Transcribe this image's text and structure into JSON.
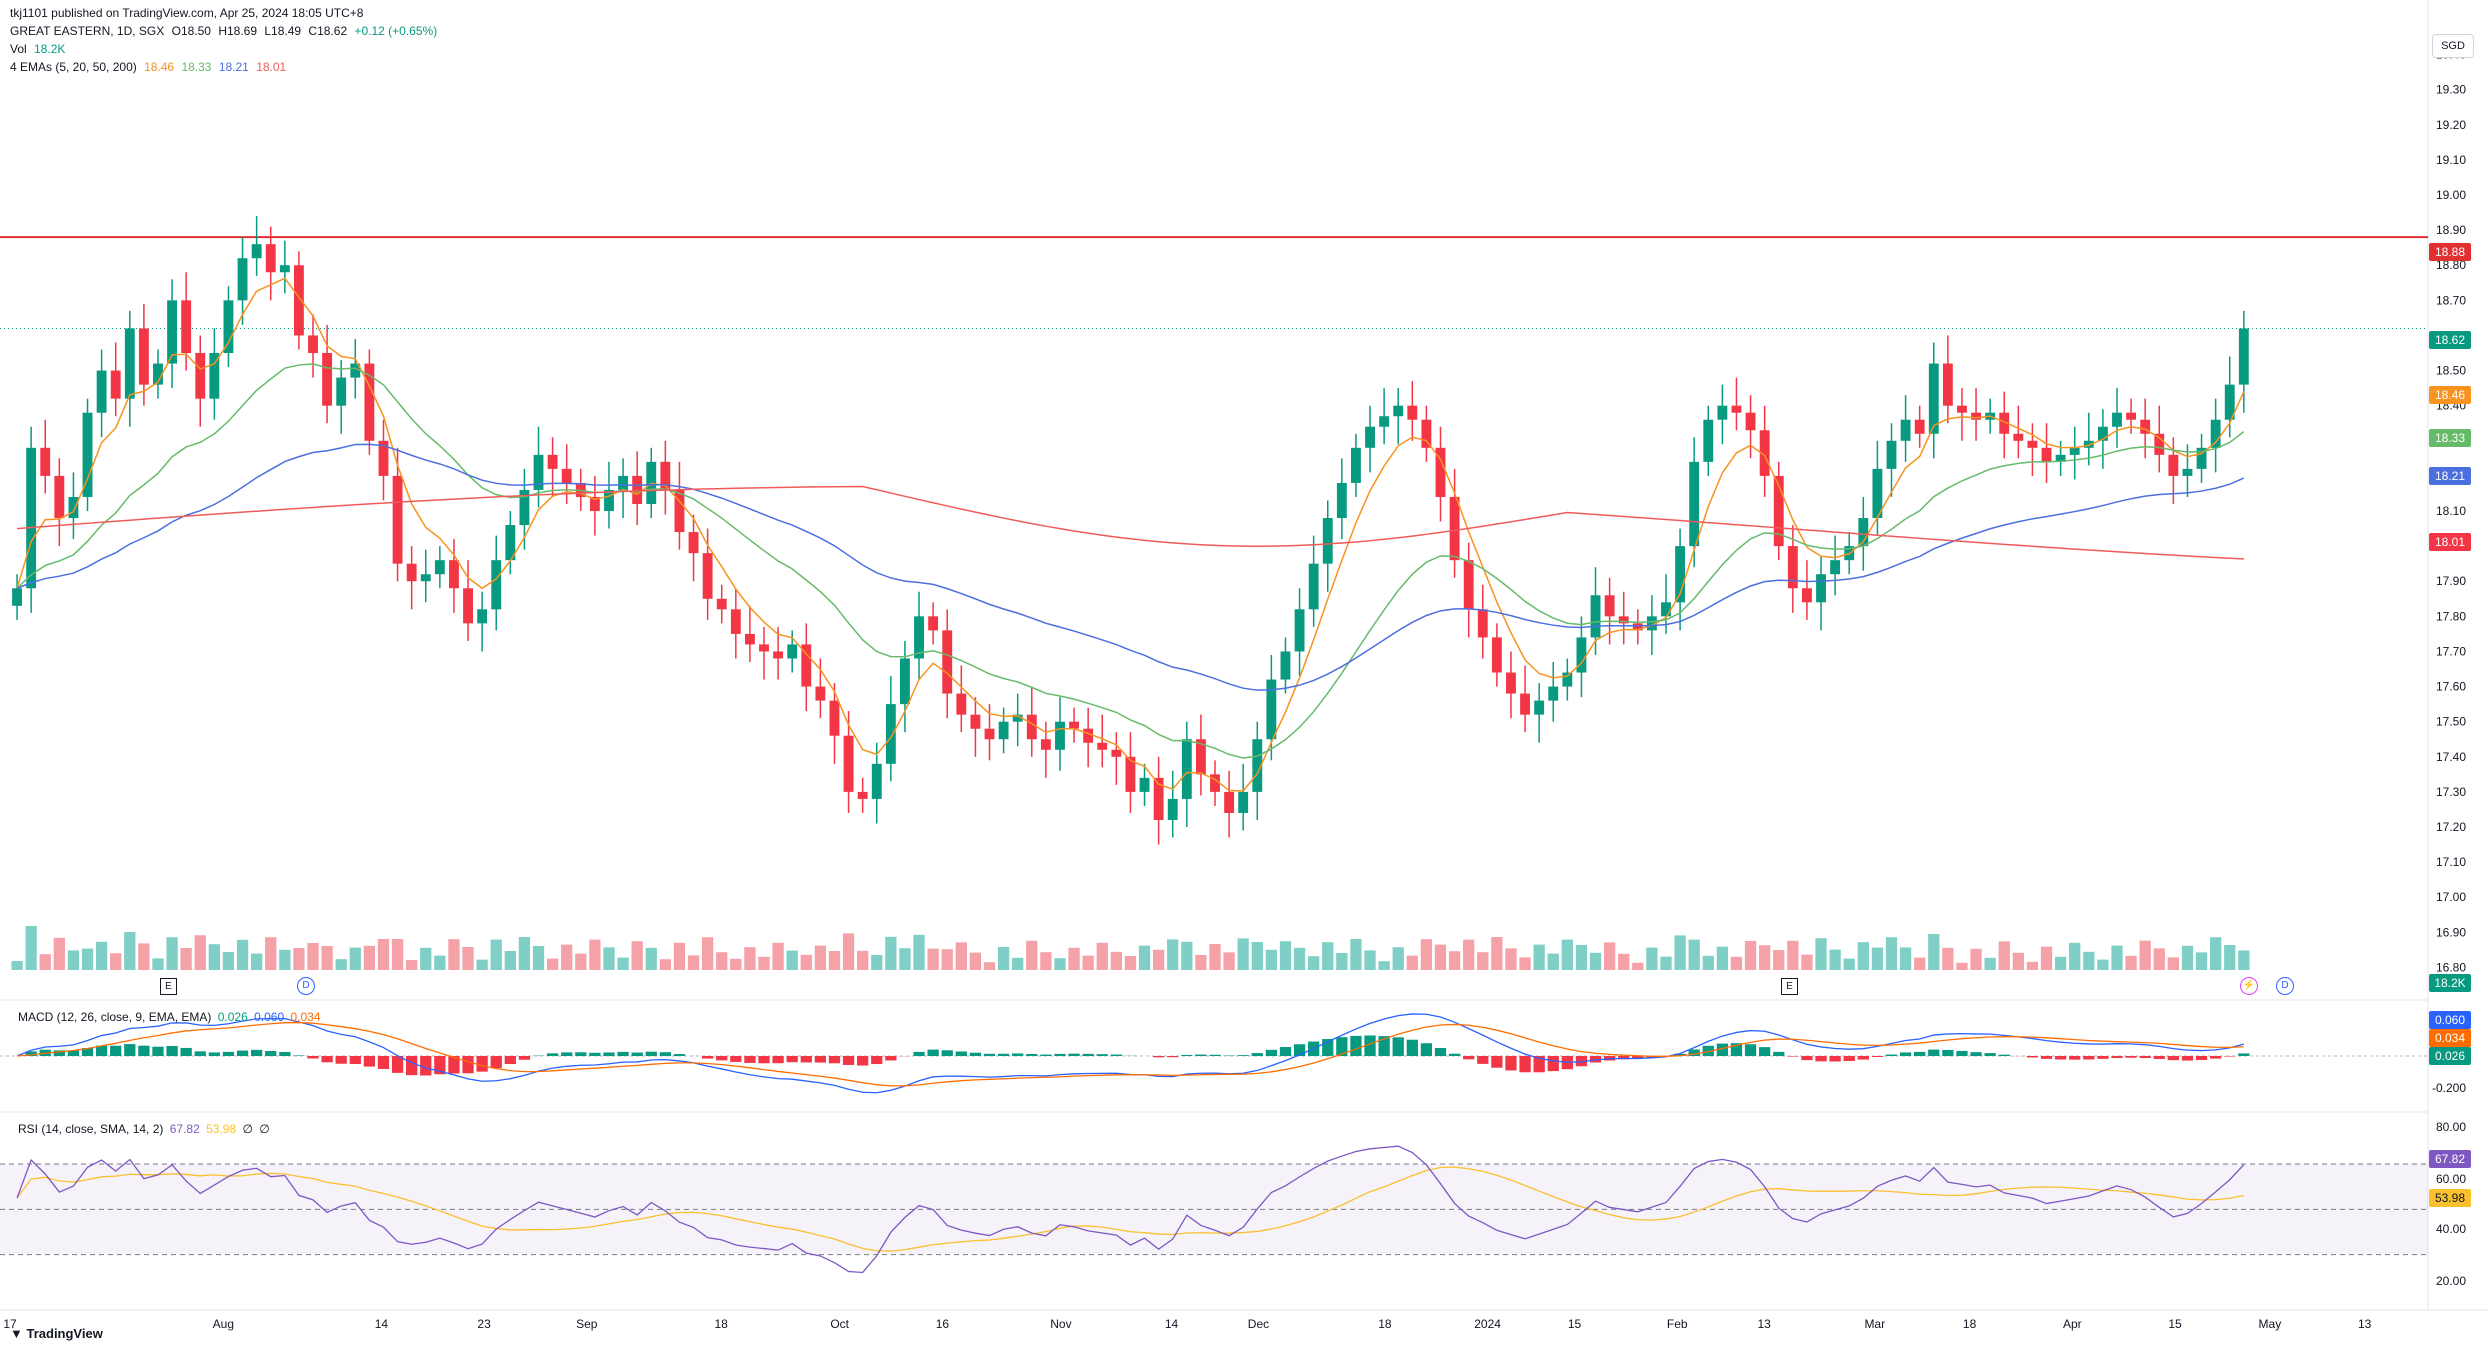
{
  "header": {
    "publisher": "tkj1101 published on TradingView.com, Apr 25, 2024 18:05 UTC+8",
    "symbol": "GREAT EASTERN, 1D, SGX",
    "open": "O18.50",
    "high": "H18.69",
    "low": "L18.49",
    "close": "C18.62",
    "change": "+0.12 (+0.65%)",
    "vol_label": "Vol",
    "vol_value": "18.2K",
    "ema_label": "4 EMAs (5, 20, 50, 200)",
    "ema_values": [
      "18.46",
      "18.33",
      "18.21",
      "18.01"
    ]
  },
  "currency": "SGD",
  "logo_text": "TradingView",
  "colors": {
    "up": "#089981",
    "down": "#f23645",
    "up_vol": "#7fcfc6",
    "down_vol": "#f5a1a8",
    "ema5": "#f7931e",
    "ema20": "#66bb6a",
    "ema50": "#4c6fe0",
    "ema200": "#f25a5a",
    "resistance": "#e03030",
    "macd": "#2962ff",
    "signal": "#ff6d00",
    "rsi": "#7e57c2",
    "rsi_ma": "#fbc02d"
  },
  "price_labels": {
    "resistance": "18.88",
    "last": "18.62",
    "ema5": "18.46",
    "ema20": "18.33",
    "ema50": "18.21",
    "ema200": "18.01",
    "volume": "18.2K"
  },
  "macd_label": {
    "title": "MACD (12, 26, close, 9, EMA, EMA)",
    "values": [
      "0.026",
      "0.060",
      "0.034"
    ]
  },
  "macd_tags": [
    "0.060",
    "0.034",
    "0.026"
  ],
  "macd_axis": [
    "-0.200"
  ],
  "rsi_label": {
    "title": "RSI (14, close, SMA, 14, 2)",
    "values": [
      "67.82",
      "53.98",
      "∅",
      "∅"
    ]
  },
  "rsi_tags": [
    "67.82",
    "53.98"
  ],
  "rsi_axis": [
    "80.00",
    "60.00",
    "40.00",
    "20.00"
  ],
  "markers": {
    "earnings": "E",
    "dividend": "D",
    "split": "⚡"
  },
  "chart_data": {
    "type": "candlestick",
    "title": "GREAT EASTERN, 1D, SGX",
    "currency": "SGD",
    "price_ticks": [
      "19.40",
      "19.30",
      "19.20",
      "19.10",
      "19.00",
      "18.90",
      "18.80",
      "18.70",
      "18.60",
      "18.50",
      "18.40",
      "18.30",
      "18.20",
      "18.10",
      "18.00",
      "17.90",
      "17.80",
      "17.70",
      "17.60",
      "17.50",
      "17.40",
      "17.30",
      "17.20",
      "17.10",
      "17.00",
      "16.90",
      "16.80"
    ],
    "ylim": [
      16.75,
      19.47
    ],
    "x_ticks": [
      "17",
      "Aug",
      "14",
      "23",
      "Sep",
      "18",
      "Oct",
      "16",
      "Nov",
      "14",
      "Dec",
      "18",
      "2024",
      "15",
      "Feb",
      "13",
      "Mar",
      "18",
      "Apr",
      "15",
      "May",
      "13"
    ],
    "resistance_level": 18.88,
    "close": [
      17.88,
      18.28,
      18.2,
      18.08,
      18.14,
      18.38,
      18.5,
      18.42,
      18.62,
      18.46,
      18.52,
      18.7,
      18.55,
      18.42,
      18.55,
      18.7,
      18.82,
      18.86,
      18.78,
      18.8,
      18.6,
      18.55,
      18.4,
      18.48,
      18.52,
      18.3,
      18.2,
      17.95,
      17.9,
      17.92,
      17.96,
      17.88,
      17.78,
      17.82,
      17.96,
      18.06,
      18.16,
      18.26,
      18.22,
      18.18,
      18.14,
      18.1,
      18.16,
      18.2,
      18.12,
      18.24,
      18.16,
      18.04,
      17.98,
      17.85,
      17.82,
      17.75,
      17.72,
      17.7,
      17.68,
      17.72,
      17.6,
      17.56,
      17.46,
      17.3,
      17.28,
      17.38,
      17.55,
      17.68,
      17.8,
      17.76,
      17.58,
      17.52,
      17.48,
      17.45,
      17.5,
      17.52,
      17.45,
      17.42,
      17.5,
      17.48,
      17.44,
      17.42,
      17.4,
      17.3,
      17.34,
      17.22,
      17.28,
      17.45,
      17.35,
      17.3,
      17.24,
      17.3,
      17.45,
      17.62,
      17.7,
      17.82,
      17.95,
      18.08,
      18.18,
      18.28,
      18.34,
      18.37,
      18.4,
      18.36,
      18.28,
      18.14,
      17.96,
      17.82,
      17.74,
      17.64,
      17.58,
      17.52,
      17.56,
      17.6,
      17.64,
      17.74,
      17.86,
      17.8,
      17.78,
      17.76,
      17.8,
      17.84,
      18.0,
      18.24,
      18.36,
      18.4,
      18.38,
      18.33,
      18.2,
      18.0,
      17.88,
      17.84,
      17.92,
      17.96,
      18.0,
      18.08,
      18.22,
      18.3,
      18.36,
      18.32,
      18.52,
      18.4,
      18.38,
      18.36,
      18.38,
      18.32,
      18.3,
      18.28,
      18.24,
      18.26,
      18.28,
      18.3,
      18.34,
      18.38,
      18.36,
      18.32,
      18.26,
      18.2,
      18.22,
      18.28,
      18.36,
      18.46,
      18.62
    ],
    "series": [
      {
        "name": "Vol",
        "type": "bar",
        "note": "daily volume"
      },
      {
        "name": "EMA 5",
        "last": 18.46
      },
      {
        "name": "EMA 20",
        "last": 18.33
      },
      {
        "name": "EMA 50",
        "last": 18.21
      },
      {
        "name": "EMA 200",
        "last": 18.01
      }
    ]
  }
}
